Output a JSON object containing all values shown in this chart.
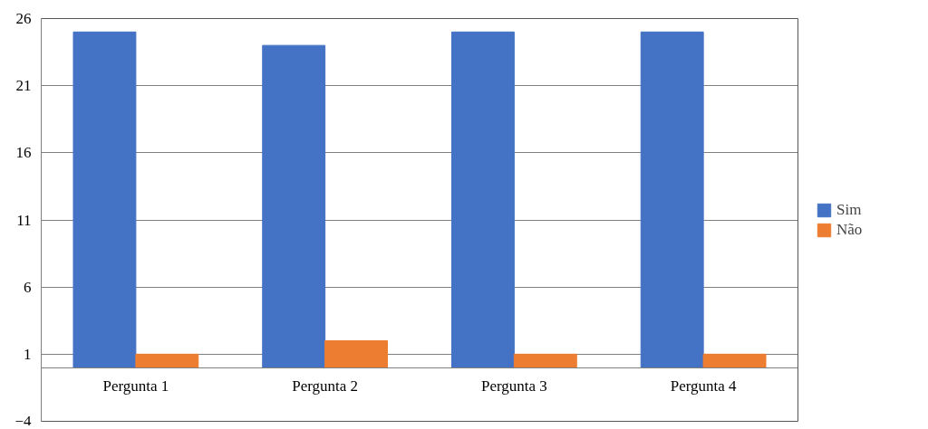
{
  "chart_data": {
    "type": "bar",
    "categories": [
      "Pergunta 1",
      "Pergunta 2",
      "Pergunta 3",
      "Pergunta 4"
    ],
    "series": [
      {
        "name": "Sim",
        "color": "#4472c4",
        "values": [
          25,
          24,
          25,
          25
        ]
      },
      {
        "name": "Não",
        "color": "#ed7d31",
        "values": [
          1,
          2,
          1,
          1
        ]
      }
    ],
    "ylim": [
      -4,
      26
    ],
    "yticks": [
      -4,
      1,
      6,
      11,
      16,
      21,
      26
    ],
    "grid": "y",
    "legend": "right"
  }
}
